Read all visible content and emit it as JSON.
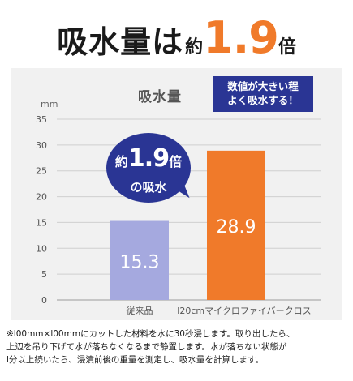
{
  "headline": {
    "lead": "吸水量は",
    "prefix": "約",
    "ratio": "1.9",
    "suffix": "倍"
  },
  "badge": {
    "line1": "数値が大きい程",
    "line2": "よく吸水する！"
  },
  "bubble": {
    "prefix": "約",
    "ratio": "1.9",
    "suffix": "倍",
    "line2": "の吸水"
  },
  "chart_data": {
    "type": "bar",
    "title": "吸水量",
    "ylabel": "mm",
    "xlabel": "",
    "ylim": [
      0,
      35
    ],
    "yticks": [
      0,
      5,
      10,
      15,
      20,
      25,
      30,
      35
    ],
    "grid": true,
    "categories": [
      "従来品",
      "l20cmマイクロファイバークロス"
    ],
    "values": [
      15.3,
      28.9
    ],
    "value_labels": [
      "15.3",
      "28.9"
    ],
    "bar_colors": [
      "#a5a9df",
      "#f07a2a"
    ]
  },
  "colors": {
    "accent": "#f07a2a",
    "navy": "#2a3594",
    "bar_old": "#a5a9df",
    "panel_bg": "#f1f1f1"
  },
  "footnote": [
    "※l00mm×l00mmにカットした材料を水に30秒浸します。取り出したら、",
    "上辺を吊り下げて水が落ちなくなるまで静置します。水が落ちない状態が",
    "l分以上続いたら、浸漬前後の重量を測定し、吸水量を計算します。"
  ]
}
